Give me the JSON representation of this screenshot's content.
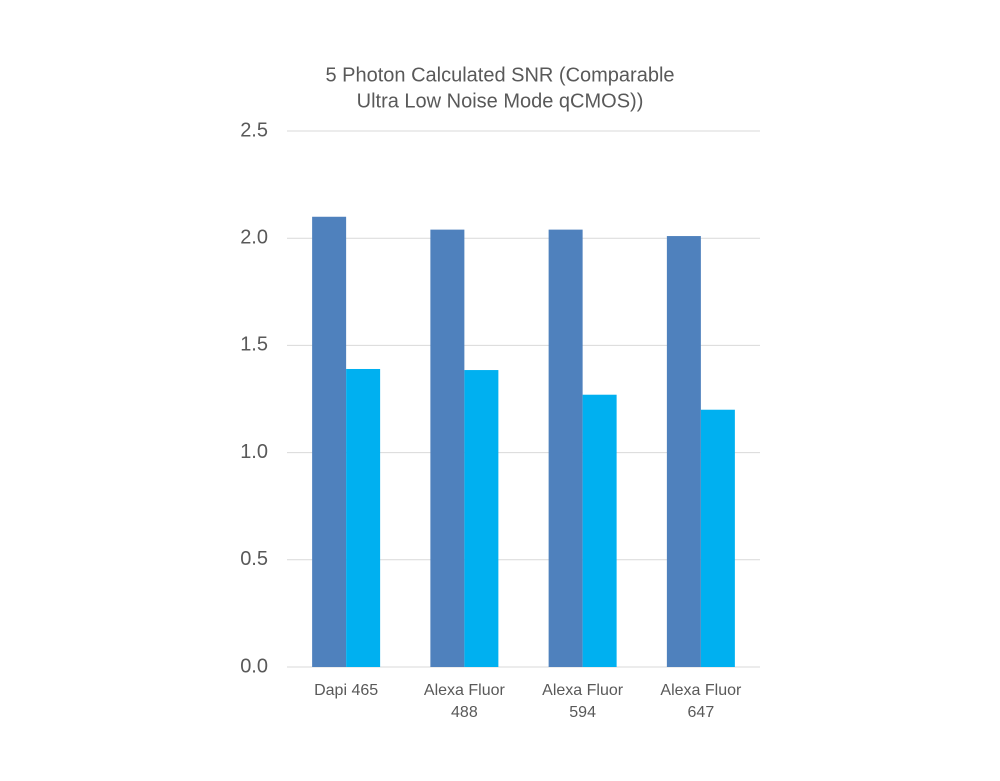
{
  "chart_data": {
    "type": "bar",
    "title": [
      "5 Photon Calculated SNR (Comparable",
      "Ultra Low Noise Mode qCMOS))"
    ],
    "categories": [
      "Dapi 465",
      "Alexa Fluor 488",
      "Alexa Fluor 594",
      "Alexa Fluor 647"
    ],
    "series": [
      {
        "color": "#4f81bd",
        "values": [
          2.1,
          2.04,
          2.04,
          2.01
        ]
      },
      {
        "color": "#00b0f0",
        "values": [
          1.39,
          1.385,
          1.27,
          1.2
        ]
      }
    ],
    "ylim": [
      0,
      2.5
    ],
    "yticks": [
      {
        "value": 0,
        "label": "0.0"
      },
      0.5,
      {
        "value": 1,
        "label": "1.0"
      },
      1.5,
      {
        "value": 2,
        "label": "2.0"
      },
      2.5
    ],
    "grid": true
  }
}
